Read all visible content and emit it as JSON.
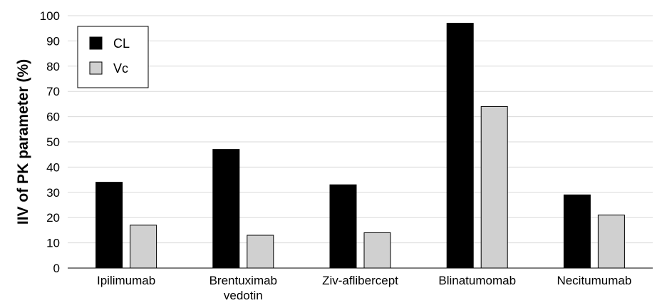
{
  "chart_data": {
    "type": "bar",
    "ylabel": "IIV of PK parameter (%)",
    "xlabel": "",
    "ylim": [
      0,
      100
    ],
    "yticks": [
      0,
      10,
      20,
      30,
      40,
      50,
      60,
      70,
      80,
      90,
      100
    ],
    "grid": true,
    "legend_position": "top-left",
    "categories": [
      [
        "Ipilimumab"
      ],
      [
        "Brentuximab",
        "vedotin"
      ],
      [
        "Ziv-aflibercept"
      ],
      [
        "Blinatumomab"
      ],
      [
        "Necitumumab"
      ]
    ],
    "series": [
      {
        "name": "CL",
        "color": "#000000",
        "values": [
          34,
          47,
          33,
          97,
          29
        ]
      },
      {
        "name": "Vc",
        "color": "#d0d0d0",
        "values": [
          17,
          13,
          14,
          64,
          21
        ]
      }
    ]
  }
}
